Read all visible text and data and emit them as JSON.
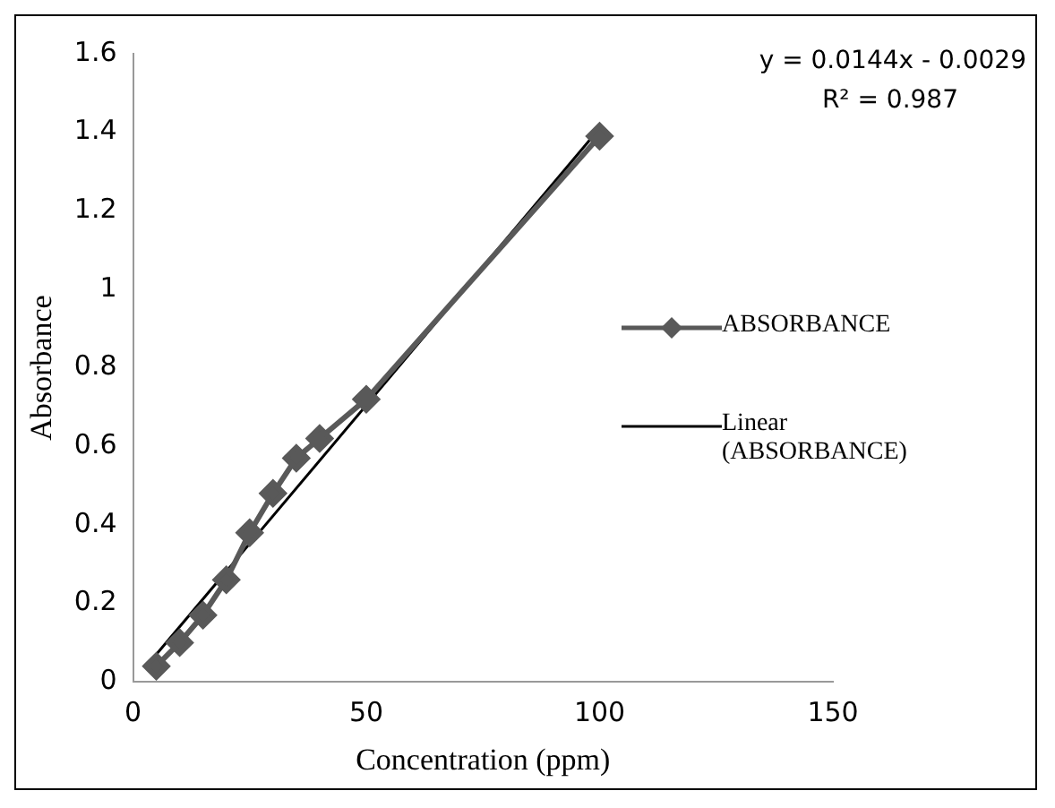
{
  "chart_data": {
    "type": "line",
    "xlabel": "Concentration (ppm)",
    "ylabel": "Absorbance",
    "annotations": [
      "y = 0.0144x - 0.0029",
      "R² = 0.987"
    ],
    "series": [
      {
        "name": "ABSORBANCE",
        "color": "#595959",
        "x": [
          5,
          10,
          15,
          20,
          25,
          30,
          35,
          40,
          50,
          100
        ],
        "values": [
          0.04,
          0.1,
          0.17,
          0.26,
          0.38,
          0.48,
          0.57,
          0.62,
          0.72,
          1.39
        ],
        "marker": "diamond"
      },
      {
        "name": "Linear (ABSORBANCE)",
        "color": "#000000",
        "x": [
          5,
          100
        ],
        "values": [
          0.07,
          1.41
        ],
        "marker": "none"
      }
    ],
    "xlim": [
      0,
      150
    ],
    "xticks": [
      0,
      50,
      100,
      150
    ],
    "ylim": [
      0,
      1.6
    ],
    "yticks": [
      0,
      0.2,
      0.4,
      0.6,
      0.8,
      1,
      1.2,
      1.4,
      1.6
    ],
    "grid": false,
    "legend": "right",
    "line_style": "solid"
  }
}
